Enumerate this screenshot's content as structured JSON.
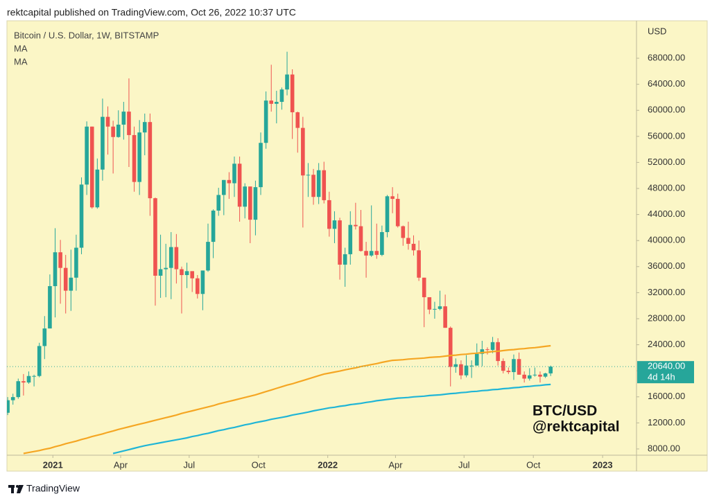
{
  "header": "rektcapital published on TradingView.com, Oct 26, 2022 10:37 UTC",
  "footer": "TradingView",
  "chart_data": {
    "type": "candlestick",
    "title": "Bitcoin / U.S. Dollar, 1W, BITSTAMP",
    "currency": "USD",
    "annotation": [
      "BTC/USD",
      "@rektcapital"
    ],
    "up_color": "#26a69a",
    "down_color": "#ef5350",
    "last_price": {
      "value": 20640,
      "label": "20640.00"
    },
    "countdown": "4d 14h",
    "x": [
      "2020-11-02",
      "2020-11-09",
      "2020-11-16",
      "2020-11-23",
      "2020-11-30",
      "2020-12-07",
      "2020-12-14",
      "2020-12-21",
      "2020-12-28",
      "2021-01-04",
      "2021-01-11",
      "2021-01-18",
      "2021-01-25",
      "2021-02-01",
      "2021-02-08",
      "2021-02-15",
      "2021-02-22",
      "2021-03-01",
      "2021-03-08",
      "2021-03-15",
      "2021-03-22",
      "2021-03-29",
      "2021-04-05",
      "2021-04-12",
      "2021-04-19",
      "2021-04-26",
      "2021-05-03",
      "2021-05-10",
      "2021-05-17",
      "2021-05-24",
      "2021-05-31",
      "2021-06-07",
      "2021-06-14",
      "2021-06-21",
      "2021-06-28",
      "2021-07-05",
      "2021-07-12",
      "2021-07-19",
      "2021-07-26",
      "2021-08-02",
      "2021-08-09",
      "2021-08-16",
      "2021-08-23",
      "2021-08-30",
      "2021-09-06",
      "2021-09-13",
      "2021-09-20",
      "2021-09-27",
      "2021-10-04",
      "2021-10-11",
      "2021-10-18",
      "2021-10-25",
      "2021-11-01",
      "2021-11-08",
      "2021-11-15",
      "2021-11-22",
      "2021-11-29",
      "2021-12-06",
      "2021-12-13",
      "2021-12-20",
      "2021-12-27",
      "2022-01-03",
      "2022-01-10",
      "2022-01-17",
      "2022-01-24",
      "2022-01-31",
      "2022-02-07",
      "2022-02-14",
      "2022-02-21",
      "2022-02-28",
      "2022-03-07",
      "2022-03-14",
      "2022-03-21",
      "2022-03-28",
      "2022-04-04",
      "2022-04-11",
      "2022-04-18",
      "2022-04-25",
      "2022-05-02",
      "2022-05-09",
      "2022-05-16",
      "2022-05-23",
      "2022-05-30",
      "2022-06-06",
      "2022-06-13",
      "2022-06-20",
      "2022-06-27",
      "2022-07-04",
      "2022-07-11",
      "2022-07-18",
      "2022-07-25",
      "2022-08-01",
      "2022-08-08",
      "2022-08-15",
      "2022-08-22",
      "2022-08-29",
      "2022-09-05",
      "2022-09-12",
      "2022-09-19",
      "2022-09-26",
      "2022-10-03",
      "2022-10-10",
      "2022-10-17",
      "2022-10-24"
    ],
    "open": [
      13550,
      15480,
      15960,
      18400,
      18200,
      19200,
      19200,
      23800,
      26500,
      33000,
      38200,
      35800,
      32300,
      34300,
      38900,
      48600,
      57500,
      45100,
      50900,
      59000,
      57500,
      55900,
      57800,
      59800,
      56200,
      49000,
      56600,
      58200,
      46500,
      34600,
      35600,
      35800,
      39000,
      35600,
      34700,
      35300,
      34200,
      31800,
      35400,
      39800,
      44600,
      47000,
      49300,
      48800,
      51800,
      45200,
      48300,
      43200,
      48200,
      55000,
      61500,
      61000,
      61300,
      63200,
      65500,
      59700,
      57300,
      50000,
      50100,
      46700,
      50800,
      46200,
      41800,
      43100,
      36300,
      37900,
      42400,
      42200,
      38400,
      37700,
      38400,
      37800,
      41300,
      46800,
      46400,
      42200,
      40400,
      39500,
      38500,
      34300,
      31300,
      29400,
      29500,
      29900,
      26600,
      20600,
      21000,
      19300,
      20800,
      20800,
      22600,
      23300,
      23200,
      24400,
      21500,
      20000,
      19800,
      21800,
      19400,
      18800,
      19300,
      19400,
      19100,
      19600
    ],
    "high": [
      15960,
      16480,
      18800,
      19500,
      19900,
      19400,
      24300,
      28400,
      34800,
      41900,
      40100,
      37800,
      38600,
      40900,
      49700,
      58300,
      57500,
      52600,
      61800,
      60600,
      58400,
      60000,
      61300,
      64900,
      57500,
      58500,
      59500,
      59500,
      46600,
      40900,
      39500,
      41300,
      41000,
      36000,
      36600,
      35300,
      34700,
      35400,
      42600,
      44800,
      48100,
      49300,
      50500,
      52900,
      52900,
      48800,
      48300,
      49200,
      56600,
      62900,
      67000,
      63000,
      63500,
      69000,
      66300,
      59800,
      59000,
      51900,
      51000,
      51900,
      52100,
      47500,
      44500,
      43500,
      38900,
      44500,
      45800,
      44700,
      39800,
      45400,
      42600,
      42300,
      47000,
      48200,
      47200,
      42300,
      42900,
      40800,
      40000,
      34300,
      31300,
      30600,
      32300,
      31700,
      26800,
      21900,
      21600,
      22400,
      21600,
      24200,
      24600,
      23600,
      25200,
      25000,
      21900,
      20500,
      22500,
      22800,
      19900,
      20400,
      20500,
      19900,
      19700,
      20800
    ],
    "low": [
      13200,
      14800,
      15700,
      16200,
      18000,
      17600,
      19000,
      21800,
      26500,
      28200,
      30300,
      28800,
      29200,
      32300,
      37900,
      47000,
      44900,
      44900,
      49200,
      53200,
      50300,
      55800,
      55500,
      51300,
      47500,
      47000,
      53100,
      43800,
      30000,
      31200,
      31300,
      31000,
      33400,
      28800,
      32700,
      32100,
      31100,
      29300,
      35200,
      37300,
      43800,
      43900,
      46400,
      46700,
      42900,
      43400,
      39600,
      40800,
      47000,
      54100,
      59800,
      58000,
      60100,
      62300,
      55600,
      53500,
      42000,
      46700,
      45500,
      45600,
      45700,
      40600,
      39600,
      34000,
      32900,
      36300,
      41700,
      38300,
      34300,
      37500,
      37200,
      37600,
      40500,
      44200,
      42000,
      39200,
      38600,
      37700,
      33800,
      26700,
      28700,
      28000,
      29300,
      26600,
      17600,
      19700,
      18700,
      19000,
      18900,
      20800,
      20700,
      22500,
      22700,
      20800,
      19600,
      19500,
      18600,
      19400,
      18200,
      18500,
      19100,
      18200,
      18900,
      19200
    ],
    "close": [
      15480,
      15960,
      18400,
      18200,
      19200,
      19200,
      23800,
      26500,
      33000,
      38200,
      35800,
      32300,
      34300,
      38900,
      48600,
      57500,
      45100,
      50900,
      59000,
      57500,
      55900,
      57800,
      59800,
      56200,
      49000,
      56600,
      58200,
      46500,
      34600,
      35600,
      35800,
      39000,
      35600,
      34700,
      35300,
      34200,
      31800,
      35400,
      39800,
      44600,
      47000,
      49300,
      48800,
      51800,
      45200,
      48300,
      43200,
      48200,
      55000,
      61500,
      61000,
      61300,
      63200,
      65500,
      59700,
      57300,
      50000,
      50100,
      46700,
      50800,
      46200,
      41800,
      43100,
      36300,
      37900,
      42400,
      42200,
      38400,
      37700,
      38400,
      37800,
      41300,
      46800,
      46400,
      42200,
      40400,
      39500,
      38500,
      34300,
      31300,
      29400,
      29500,
      29900,
      26600,
      20600,
      21000,
      19300,
      20800,
      20800,
      22600,
      23300,
      23200,
      24400,
      21500,
      20000,
      19800,
      21800,
      19400,
      18800,
      19300,
      19400,
      19100,
      19600,
      20640
    ],
    "series": [
      {
        "name": "MA",
        "color": "#f5a623",
        "values": [
          null,
          null,
          null,
          7300,
          7450,
          7600,
          7750,
          7950,
          8100,
          8350,
          8550,
          8800,
          9000,
          9200,
          9450,
          9650,
          9900,
          10100,
          10300,
          10550,
          10750,
          11000,
          11200,
          11400,
          11600,
          11800,
          12000,
          12200,
          12400,
          12600,
          12800,
          13000,
          13200,
          13450,
          13650,
          13850,
          14050,
          14250,
          14450,
          14650,
          14900,
          15100,
          15300,
          15500,
          15700,
          15900,
          16100,
          16300,
          16550,
          16800,
          17050,
          17300,
          17550,
          17800,
          18000,
          18250,
          18500,
          18750,
          19000,
          19250,
          19500,
          19650,
          19800,
          19950,
          20150,
          20300,
          20450,
          20650,
          20800,
          20950,
          21100,
          21300,
          21450,
          21600,
          21650,
          21700,
          21800,
          21850,
          21900,
          21950,
          22050,
          22100,
          22150,
          22250,
          22350,
          22400,
          22500,
          22550,
          22650,
          22700,
          22800,
          22850,
          22950,
          23000,
          23100,
          23200,
          23250,
          23350,
          23400,
          23500,
          23550,
          23650,
          23750,
          23850
        ]
      },
      {
        "name": "MA",
        "color": "#1fb5d6",
        "values": [
          null,
          null,
          null,
          null,
          null,
          null,
          null,
          null,
          null,
          null,
          null,
          null,
          null,
          null,
          null,
          null,
          null,
          null,
          null,
          null,
          7300,
          7500,
          7700,
          7900,
          8100,
          8300,
          8500,
          8650,
          8800,
          8950,
          9100,
          9250,
          9400,
          9550,
          9700,
          9900,
          10050,
          10250,
          10400,
          10600,
          10800,
          10950,
          11150,
          11300,
          11500,
          11700,
          11850,
          12050,
          12200,
          12350,
          12550,
          12700,
          12850,
          13000,
          13200,
          13350,
          13500,
          13650,
          13850,
          14000,
          14150,
          14300,
          14400,
          14550,
          14650,
          14800,
          14900,
          15000,
          15150,
          15250,
          15400,
          15500,
          15600,
          15700,
          15800,
          15850,
          15900,
          16000,
          16050,
          16100,
          16200,
          16250,
          16300,
          16400,
          16500,
          16550,
          16650,
          16700,
          16800,
          16850,
          16950,
          17000,
          17100,
          17150,
          17250,
          17300,
          17400,
          17450,
          17550,
          17600,
          17700,
          17750,
          17850,
          17900
        ]
      }
    ],
    "ylim": [
      7250,
      73750
    ],
    "yticks": [
      {
        "value": 8000,
        "label": "8000.00"
      },
      {
        "value": 12000,
        "label": "12000.00"
      },
      {
        "value": 16000,
        "label": "16000.00"
      },
      {
        "value": 20000,
        "label": "20000.00"
      },
      {
        "value": 24000,
        "label": "24000.00"
      },
      {
        "value": 28000,
        "label": "28000.00"
      },
      {
        "value": 32000,
        "label": "32000.00"
      },
      {
        "value": 36000,
        "label": "36000.00"
      },
      {
        "value": 40000,
        "label": "40000.00"
      },
      {
        "value": 44000,
        "label": "44000.00"
      },
      {
        "value": 48000,
        "label": "48000.00"
      },
      {
        "value": 52000,
        "label": "52000.00"
      },
      {
        "value": 56000,
        "label": "56000.00"
      },
      {
        "value": 60000,
        "label": "60000.00"
      },
      {
        "value": 64000,
        "label": "64000.00"
      },
      {
        "value": 68000,
        "label": "68000.00"
      }
    ],
    "xlim": [
      "2020-11-01",
      "2023-02-15"
    ],
    "xticks": [
      {
        "value": "2021-01-01",
        "label": "2021"
      },
      {
        "value": "2021-04-01",
        "label": "Apr"
      },
      {
        "value": "2021-07-01",
        "label": "Jul"
      },
      {
        "value": "2021-10-01",
        "label": "Oct"
      },
      {
        "value": "2022-01-01",
        "label": "2022"
      },
      {
        "value": "2022-04-01",
        "label": "Apr"
      },
      {
        "value": "2022-07-01",
        "label": "Jul"
      },
      {
        "value": "2022-10-01",
        "label": "Oct"
      },
      {
        "value": "2023-01-01",
        "label": "2023"
      }
    ]
  }
}
